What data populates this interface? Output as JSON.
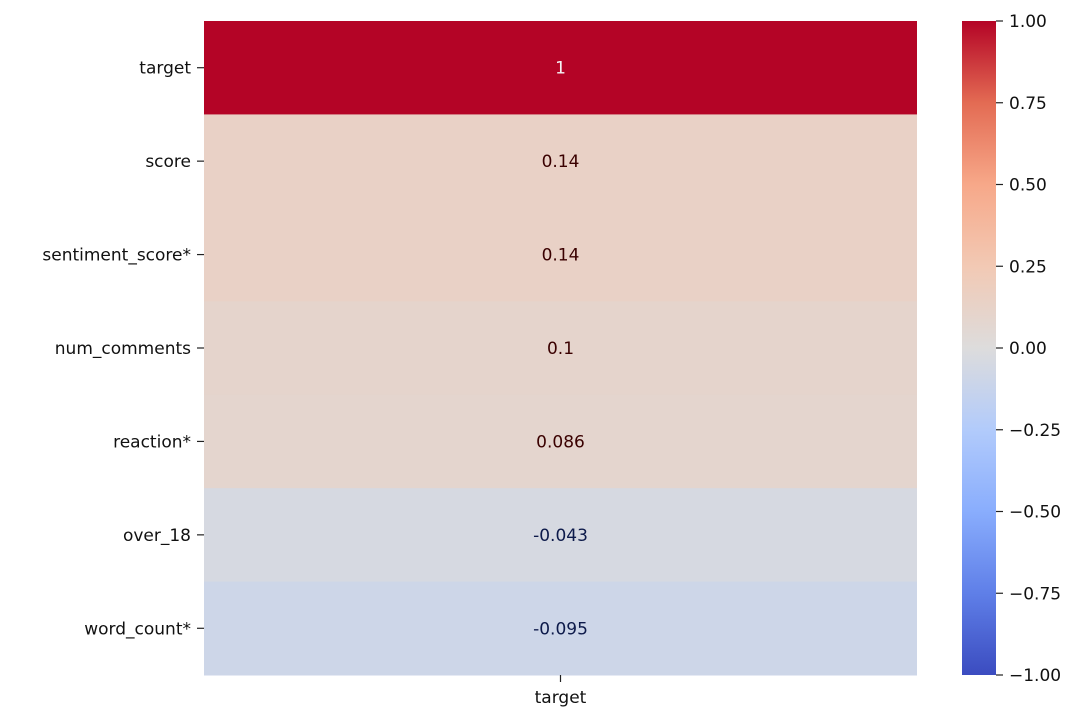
{
  "chart_data": {
    "type": "heatmap",
    "columns": [
      "target"
    ],
    "rows": [
      "target",
      "score",
      "sentiment_score*",
      "num_comments",
      "reaction*",
      "over_18",
      "word_count*"
    ],
    "values": [
      [
        1.0
      ],
      [
        0.14
      ],
      [
        0.14
      ],
      [
        0.1
      ],
      [
        0.086
      ],
      [
        -0.043
      ],
      [
        -0.095
      ]
    ],
    "annotations": [
      "1",
      "0.14",
      "0.14",
      "0.1",
      "0.086",
      "-0.043",
      "-0.095"
    ],
    "colormap": "coolwarm",
    "vmin": -1.0,
    "vmax": 1.0,
    "colorbar": {
      "ticks": [
        1.0,
        0.75,
        0.5,
        0.25,
        0.0,
        -0.25,
        -0.5,
        -0.75,
        -1.0
      ],
      "tick_labels": [
        "1.00",
        "0.75",
        "0.50",
        "0.25",
        "0.00",
        "−0.25",
        "−0.50",
        "−0.75",
        "−1.00"
      ]
    }
  }
}
